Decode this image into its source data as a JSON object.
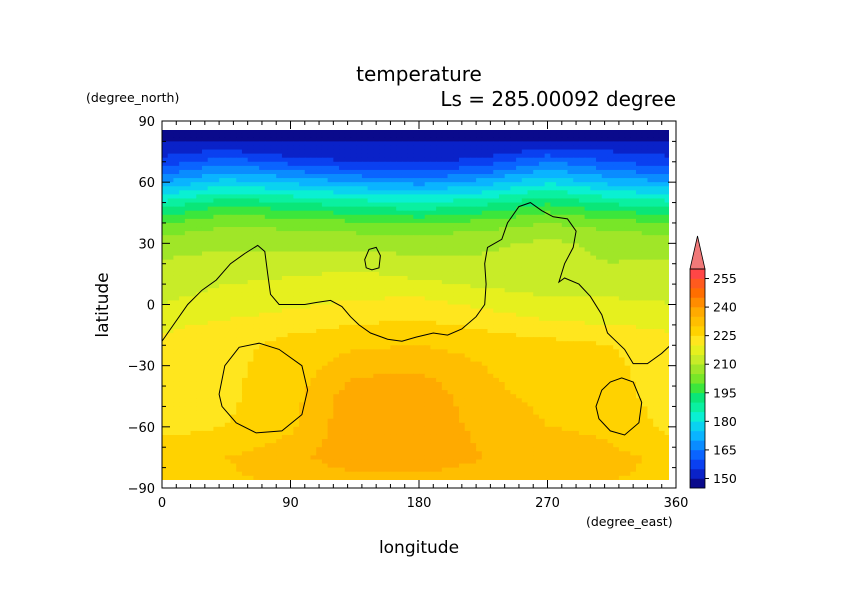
{
  "chart_data": {
    "type": "heatmap",
    "title": "temperature",
    "subtitle": "Ls = 285.00092 degree",
    "xlabel": "longitude",
    "ylabel": "latitude",
    "x_units": "(degree_east)",
    "y_units": "(degree_north)",
    "xlim": [
      0,
      360
    ],
    "ylim": [
      -90,
      90
    ],
    "x_ticks": [
      "0",
      "90",
      "180",
      "270",
      "360"
    ],
    "y_ticks": [
      "90",
      "60",
      "30",
      "0",
      "−30",
      "−60",
      "−90"
    ],
    "x_tick_values": [
      0,
      90,
      180,
      270,
      360
    ],
    "y_tick_values": [
      90,
      60,
      30,
      0,
      -30,
      -60,
      -90
    ],
    "grid": false,
    "colorbar": {
      "levels": [
        145,
        150,
        155,
        160,
        165,
        170,
        175,
        180,
        185,
        190,
        195,
        200,
        205,
        210,
        215,
        220,
        225,
        230,
        235,
        240,
        245,
        250,
        255,
        260
      ],
      "labels": [
        "255",
        "240",
        "225",
        "210",
        "195",
        "180",
        "165",
        "150"
      ],
      "label_values": [
        255,
        240,
        225,
        210,
        195,
        180,
        165,
        150
      ],
      "colors": [
        "#0a0a8c",
        "#0a22c8",
        "#0a40f0",
        "#0a64ff",
        "#0a8cff",
        "#0ab4ff",
        "#0ad2f0",
        "#0af0d2",
        "#0af0a0",
        "#0ae678",
        "#3ce63c",
        "#78e628",
        "#a0e628",
        "#c8ec28",
        "#e6f01e",
        "#ffe61e",
        "#ffd200",
        "#ffbe00",
        "#ffaa00",
        "#ff8c00",
        "#ff6e00",
        "#ff5a1e",
        "#ff4646",
        "#f07878"
      ],
      "extend_max": true
    },
    "data": {
      "lat": [
        85,
        80,
        75,
        70,
        65,
        60,
        55,
        50,
        45,
        40,
        35,
        30,
        20,
        10,
        0,
        -10,
        -20,
        -30,
        -45,
        -60,
        -75,
        -87
      ],
      "lon": [
        0,
        45,
        90,
        135,
        180,
        225,
        270,
        315,
        360
      ],
      "values": [
        [
          148,
          148,
          148,
          148,
          148,
          148,
          148,
          148,
          148
        ],
        [
          150,
          150,
          150,
          150,
          150,
          150,
          150,
          150,
          150
        ],
        [
          153,
          156,
          152,
          151,
          151,
          152,
          157,
          155,
          153
        ],
        [
          157,
          163,
          158,
          155,
          154,
          157,
          165,
          160,
          157
        ],
        [
          163,
          170,
          166,
          162,
          160,
          164,
          172,
          166,
          163
        ],
        [
          170,
          177,
          174,
          170,
          168,
          172,
          179,
          173,
          170
        ],
        [
          178,
          185,
          182,
          179,
          177,
          180,
          187,
          181,
          178
        ],
        [
          186,
          193,
          190,
          187,
          185,
          188,
          194,
          189,
          186
        ],
        [
          193,
          199,
          197,
          194,
          192,
          195,
          200,
          196,
          193
        ],
        [
          200,
          204,
          203,
          201,
          199,
          202,
          205,
          202,
          200
        ],
        [
          204,
          207,
          206,
          205,
          204,
          206,
          208,
          206,
          204
        ],
        [
          207,
          209,
          208,
          208,
          207,
          209,
          211,
          209,
          207
        ],
        [
          211,
          212,
          213,
          214,
          212,
          211,
          211,
          210,
          211
        ],
        [
          213,
          215,
          216,
          217,
          216,
          214,
          213,
          213,
          213
        ],
        [
          215,
          217,
          219,
          221,
          222,
          219,
          216,
          216,
          215
        ],
        [
          219,
          221,
          223,
          225,
          226,
          224,
          221,
          220,
          219
        ],
        [
          221,
          223,
          227,
          229,
          230,
          228,
          227,
          225,
          221
        ],
        [
          222,
          224,
          227,
          233,
          234,
          230,
          228,
          226,
          222
        ],
        [
          222,
          224,
          228,
          238,
          239,
          231,
          229,
          227,
          222
        ],
        [
          223,
          225,
          229,
          239,
          240,
          233,
          230,
          229,
          223
        ],
        [
          229,
          230,
          233,
          239,
          240,
          235,
          233,
          231,
          229
        ],
        [
          229,
          229,
          231,
          232,
          232,
          231,
          231,
          230,
          229
        ]
      ]
    },
    "contours": [
      {
        "name": "main-continent-contour",
        "closed": false,
        "points": [
          [
            0,
            -18
          ],
          [
            8,
            -10
          ],
          [
            18,
            0
          ],
          [
            28,
            7
          ],
          [
            38,
            12
          ],
          [
            48,
            20
          ],
          [
            58,
            25
          ],
          [
            67,
            29
          ],
          [
            72,
            26
          ],
          [
            74,
            15
          ],
          [
            76,
            5
          ],
          [
            82,
            0
          ],
          [
            100,
            0
          ],
          [
            108,
            1
          ],
          [
            118,
            2
          ],
          [
            126,
            -1
          ],
          [
            132,
            -6
          ],
          [
            138,
            -10
          ],
          [
            146,
            -14
          ],
          [
            158,
            -17
          ],
          [
            168,
            -18
          ],
          [
            178,
            -16
          ],
          [
            190,
            -14
          ],
          [
            200,
            -15
          ],
          [
            210,
            -12
          ],
          [
            220,
            -6
          ],
          [
            226,
            0
          ],
          [
            227,
            10
          ],
          [
            226,
            20
          ],
          [
            228,
            28
          ],
          [
            238,
            32
          ],
          [
            242,
            40
          ],
          [
            250,
            48
          ],
          [
            258,
            50
          ],
          [
            266,
            46
          ],
          [
            274,
            43
          ],
          [
            284,
            42
          ],
          [
            290,
            36
          ],
          [
            288,
            28
          ],
          [
            282,
            20
          ],
          [
            278,
            11
          ],
          [
            282,
            13
          ],
          [
            292,
            10
          ],
          [
            300,
            4
          ],
          [
            308,
            -5
          ],
          [
            312,
            -14
          ],
          [
            318,
            -18
          ],
          [
            324,
            -22
          ],
          [
            330,
            -29
          ],
          [
            340,
            -29
          ],
          [
            350,
            -24
          ],
          [
            356,
            -20
          ]
        ]
      },
      {
        "name": "small-island-contour",
        "closed": true,
        "points": [
          [
            142,
            22
          ],
          [
            145,
            27
          ],
          [
            150,
            28
          ],
          [
            153,
            24
          ],
          [
            152,
            18
          ],
          [
            147,
            17
          ],
          [
            143,
            18
          ]
        ]
      },
      {
        "name": "west-basin-contour",
        "closed": true,
        "points": [
          [
            40,
            -44
          ],
          [
            44,
            -30
          ],
          [
            54,
            -21
          ],
          [
            68,
            -19
          ],
          [
            82,
            -22
          ],
          [
            98,
            -30
          ],
          [
            102,
            -42
          ],
          [
            98,
            -54
          ],
          [
            84,
            -62
          ],
          [
            66,
            -63
          ],
          [
            52,
            -58
          ],
          [
            42,
            -50
          ]
        ]
      },
      {
        "name": "east-basin-contour",
        "closed": true,
        "points": [
          [
            304,
            -50
          ],
          [
            308,
            -42
          ],
          [
            314,
            -38
          ],
          [
            322,
            -36
          ],
          [
            330,
            -38
          ],
          [
            336,
            -48
          ],
          [
            334,
            -58
          ],
          [
            324,
            -64
          ],
          [
            314,
            -62
          ],
          [
            306,
            -56
          ]
        ]
      }
    ]
  }
}
